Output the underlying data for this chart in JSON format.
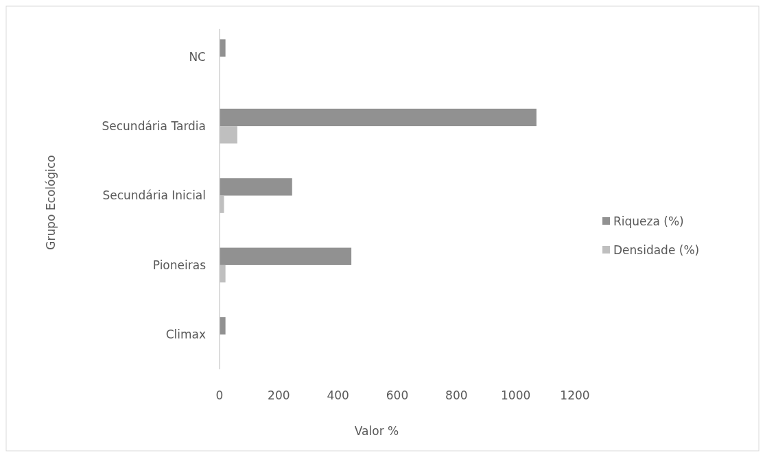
{
  "chart_data": {
    "type": "bar",
    "orientation": "horizontal",
    "xlabel": "Valor %",
    "ylabel": "Grupo Ecológico",
    "categories": [
      "NC",
      "Secundária Tardia",
      "Secundária Inicial",
      "Pioneiras",
      "Climax"
    ],
    "series": [
      {
        "name": "Riqueza (%)",
        "color": "#919191",
        "values": [
          20,
          1070,
          245,
          445,
          20
        ]
      },
      {
        "name": "Densidade (%)",
        "color": "#bfbfbf",
        "values": [
          0,
          60,
          15,
          20,
          0
        ]
      }
    ],
    "xlim": [
      0,
      1200
    ],
    "xticks": [
      0,
      200,
      400,
      600,
      800,
      1000,
      1200
    ],
    "grid": false,
    "legend": "right"
  }
}
